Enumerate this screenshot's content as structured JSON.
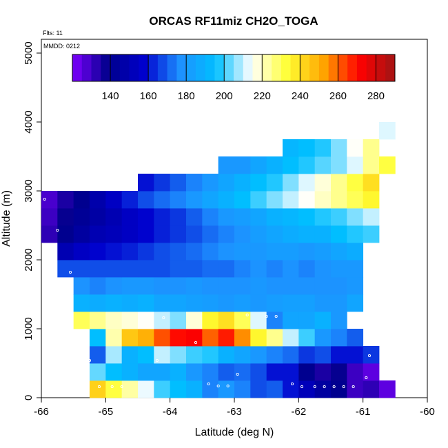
{
  "chart_data": {
    "type": "heatmap",
    "title": "ORCAS RF11miz CH2O_TOGA",
    "note_flights": "Flts: 11",
    "note_date": "MMDD: 0212",
    "xlabel": "Latitude (deg N)",
    "ylabel": "Altitude (m)",
    "xlim": [
      -66,
      -60
    ],
    "ylim": [
      0,
      5200
    ],
    "x_ticks": [
      -66,
      -65,
      -64,
      -63,
      -62,
      -61,
      -60
    ],
    "y_ticks": [
      0,
      1000,
      2000,
      3000,
      4000,
      5000
    ],
    "cell_size": {
      "lat": 0.25,
      "alt": 250
    },
    "colorbar": {
      "range": [
        120,
        290
      ],
      "ticks": [
        140,
        160,
        180,
        200,
        220,
        240,
        260,
        280
      ],
      "stops": [
        "#7f00ff",
        "#00008b",
        "#0000cd",
        "#1e90ff",
        "#00bfff",
        "#ffffff",
        "#ffff33",
        "#ffa500",
        "#ff0000",
        "#a01515"
      ]
    },
    "rows": [
      {
        "alt": 0,
        "start": -65.25,
        "values": [
          243,
          232,
          223,
          213,
          200,
          195,
          190,
          175,
          180,
          175,
          168,
          170,
          160,
          152,
          145,
          140,
          130,
          132,
          125
        ]
      },
      {
        "alt": 250,
        "start": -65.25,
        "values": [
          203,
          195,
          190,
          185,
          185,
          190,
          180,
          175,
          170,
          172,
          168,
          160,
          160,
          140,
          135,
          138,
          130,
          125
        ]
      },
      {
        "alt": 500,
        "start": -65.25,
        "values": [
          170,
          208,
          190,
          195,
          210,
          205,
          200,
          198,
          190,
          185,
          180,
          175,
          172,
          165,
          168,
          160,
          160,
          165
        ]
      },
      {
        "alt": 750,
        "start": -65.25,
        "values": [
          195,
          222,
          245,
          250,
          262,
          270,
          272,
          260,
          268,
          255,
          235,
          225,
          210,
          200,
          180,
          175,
          170
        ]
      },
      {
        "alt": 1000,
        "start": -65.5,
        "values": [
          230,
          225,
          220,
          218,
          215,
          210,
          205,
          218,
          235,
          240,
          230,
          212,
          175,
          185,
          185,
          190,
          180
        ]
      },
      {
        "alt": 1250,
        "start": -65.5,
        "values": [
          190,
          188,
          190,
          188,
          190,
          185,
          185,
          183,
          182,
          180,
          182,
          180,
          182,
          183,
          183,
          180,
          180,
          185
        ]
      },
      {
        "alt": 1500,
        "start": -65.5,
        "values": [
          178,
          175,
          178,
          180,
          180,
          178,
          178,
          180,
          178,
          178,
          178,
          180,
          178,
          178,
          178,
          178,
          178,
          180
        ]
      },
      {
        "alt": 1750,
        "start": -65.75,
        "values": [
          168,
          168,
          168,
          168,
          168,
          168,
          168,
          170,
          170,
          172,
          172,
          175,
          178,
          175,
          178,
          175,
          178,
          180,
          180
        ]
      },
      {
        "alt": 2000,
        "start": -65.75,
        "values": [
          150,
          155,
          158,
          160,
          162,
          165,
          168,
          170,
          172,
          175,
          178,
          180,
          180,
          182,
          182,
          180,
          182,
          185,
          188
        ]
      },
      {
        "alt": 2250,
        "start": -66,
        "values": [
          132,
          140,
          145,
          150,
          152,
          155,
          158,
          162,
          165,
          168,
          172,
          175,
          178,
          182,
          185,
          188,
          190,
          190,
          195,
          198,
          200
        ]
      },
      {
        "alt": 2500,
        "start": -66,
        "values": [
          130,
          138,
          142,
          146,
          150,
          155,
          158,
          162,
          165,
          170,
          175,
          180,
          182,
          185,
          190,
          192,
          195,
          198,
          200,
          205,
          210
        ]
      },
      {
        "alt": 2750,
        "start": -66,
        "values": [
          128,
          135,
          140,
          148,
          155,
          162,
          168,
          172,
          175,
          180,
          185,
          190,
          195,
          200,
          205,
          210,
          215,
          220,
          225,
          230,
          235
        ]
      },
      {
        "alt": 3000,
        "start": -64.5,
        "values": [
          160,
          165,
          170,
          175,
          180,
          185,
          190,
          195,
          198,
          205,
          212,
          218,
          225,
          232,
          240
        ]
      },
      {
        "alt": 3250,
        "start": -63.25,
        "values": [
          180,
          180,
          185,
          190,
          195,
          198,
          202,
          205,
          212,
          225,
          232
        ]
      },
      {
        "alt": 3500,
        "start": -62.25,
        "values": [
          192,
          195,
          198,
          205,
          215,
          225
        ]
      },
      {
        "alt": 3750,
        "start": -60.75,
        "values": [
          212
        ]
      }
    ],
    "track_points": [
      {
        "lat": -65.95,
        "alt": 2880
      },
      {
        "lat": -65.75,
        "alt": 2430
      },
      {
        "lat": -65.55,
        "alt": 1820
      },
      {
        "lat": -65.25,
        "alt": 540
      },
      {
        "lat": -65.1,
        "alt": 160
      },
      {
        "lat": -64.9,
        "alt": 160
      },
      {
        "lat": -64.75,
        "alt": 160
      },
      {
        "lat": -64.2,
        "alt": 540
      },
      {
        "lat": -64.1,
        "alt": 1160
      },
      {
        "lat": -63.6,
        "alt": 800
      },
      {
        "lat": -63.4,
        "alt": 200
      },
      {
        "lat": -63.25,
        "alt": 170
      },
      {
        "lat": -63.1,
        "alt": 170
      },
      {
        "lat": -62.95,
        "alt": 340
      },
      {
        "lat": -62.8,
        "alt": 1200
      },
      {
        "lat": -62.5,
        "alt": 1180
      },
      {
        "lat": -62.35,
        "alt": 1180
      },
      {
        "lat": -62.1,
        "alt": 200
      },
      {
        "lat": -61.95,
        "alt": 160
      },
      {
        "lat": -61.75,
        "alt": 160
      },
      {
        "lat": -61.6,
        "alt": 160
      },
      {
        "lat": -61.45,
        "alt": 160
      },
      {
        "lat": -61.3,
        "alt": 160
      },
      {
        "lat": -61.15,
        "alt": 160
      },
      {
        "lat": -60.95,
        "alt": 290
      },
      {
        "lat": -60.9,
        "alt": 610
      },
      {
        "lat": -60.8,
        "alt": 1240
      },
      {
        "lat": -60.7,
        "alt": 2110
      },
      {
        "lat": -60.55,
        "alt": 3000
      }
    ]
  }
}
